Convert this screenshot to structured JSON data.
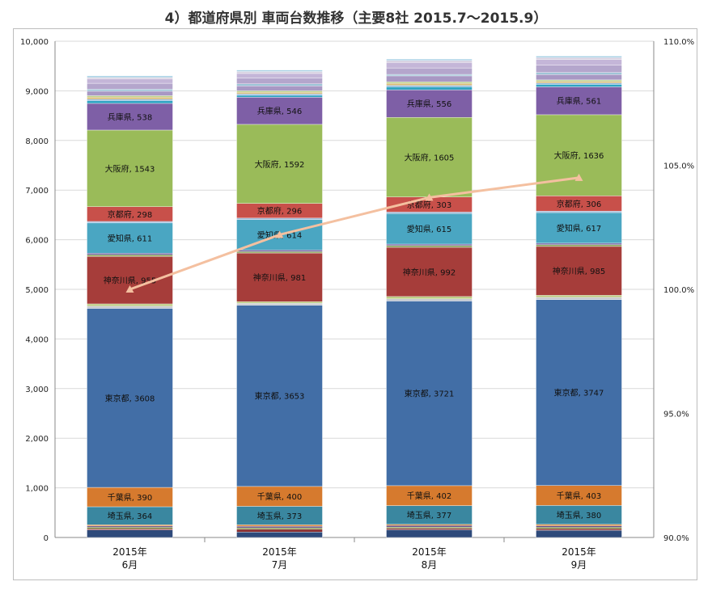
{
  "chart_data": {
    "type": "bar",
    "stacked": true,
    "title": "4）都道府県別 車両台数推移（主要8社 2015.7～2015.9）",
    "categories": [
      [
        "2015年",
        "6月"
      ],
      [
        "2015年",
        "7月"
      ],
      [
        "2015年",
        "8月"
      ],
      [
        "2015年",
        "9月"
      ]
    ],
    "ylim": [
      0,
      10000
    ],
    "yticks": [
      "0",
      "1,000",
      "2,000",
      "3,000",
      "4,000",
      "5,000",
      "6,000",
      "7,000",
      "8,000",
      "9,000",
      "10,000"
    ],
    "y2lim": [
      90,
      110
    ],
    "y2ticks": [
      "90.0%",
      "95.0%",
      "100.0%",
      "105.0%",
      "110.0%"
    ],
    "grid": true,
    "series": [
      {
        "name": "",
        "color": "#2e4a7a",
        "values": [
          150,
          110,
          155,
          145
        ]
      },
      {
        "name": "",
        "color": "#8c3030",
        "values": [
          25,
          55,
          30,
          30
        ]
      },
      {
        "name": "",
        "color": "#7a8a35",
        "values": [
          30,
          30,
          25,
          30
        ]
      },
      {
        "name": "",
        "color": "#5c4580",
        "values": [
          25,
          30,
          30,
          30
        ]
      },
      {
        "name": "",
        "color": "#d9873a",
        "values": [
          25,
          30,
          25,
          30
        ]
      },
      {
        "name": "埼玉県",
        "color": "#3a87a0",
        "values": [
          364,
          373,
          377,
          380
        ],
        "label": true
      },
      {
        "name": "千葉県",
        "color": "#d67a2e",
        "values": [
          390,
          400,
          402,
          403
        ],
        "label": true
      },
      {
        "name": "東京都",
        "color": "#426ea6",
        "values": [
          3608,
          3653,
          3721,
          3747
        ],
        "label": true
      },
      {
        "name": "",
        "color": "#c8cad0",
        "values": [
          45,
          40,
          45,
          45
        ]
      },
      {
        "name": "",
        "color": "#b8c87a",
        "values": [
          45,
          30,
          45,
          40
        ]
      },
      {
        "name": "神奈川県",
        "color": "#a63d3a",
        "values": [
          955,
          981,
          992,
          985
        ],
        "label": true
      },
      {
        "name": "",
        "color": "#8aa35a",
        "values": [
          35,
          30,
          35,
          35
        ]
      },
      {
        "name": "",
        "color": "#6c5aa0",
        "values": [
          30,
          30,
          30,
          30
        ]
      },
      {
        "name": "愛知県",
        "color": "#4aa6c2",
        "values": [
          611,
          614,
          615,
          617
        ],
        "label": true
      },
      {
        "name": "",
        "color": "#9ab6d8",
        "values": [
          30,
          30,
          30,
          30
        ]
      },
      {
        "name": "京都府",
        "color": "#c8504a",
        "values": [
          298,
          296,
          303,
          306
        ],
        "label": true
      },
      {
        "name": "大阪府",
        "color": "#9abb59",
        "values": [
          1543,
          1592,
          1605,
          1636
        ],
        "label": true
      },
      {
        "name": "兵庫県",
        "color": "#7e5fa6",
        "values": [
          538,
          546,
          556,
          561
        ],
        "label": true
      },
      {
        "name": "",
        "color": "#2ea3c2",
        "values": [
          55,
          40,
          60,
          50
        ]
      },
      {
        "name": "",
        "color": "#8fb4da",
        "values": [
          30,
          30,
          30,
          30
        ]
      },
      {
        "name": "",
        "color": "#d5b870",
        "values": [
          40,
          30,
          40,
          30
        ]
      },
      {
        "name": "",
        "color": "#bcd08a",
        "values": [
          30,
          30,
          30,
          30
        ]
      },
      {
        "name": "",
        "color": "#a898c4",
        "values": [
          90,
          100,
          120,
          110
        ]
      },
      {
        "name": "",
        "color": "#9cc4d6",
        "values": [
          40,
          40,
          30,
          40
        ]
      },
      {
        "name": "",
        "color": "#b4a6cc",
        "values": [
          120,
          120,
          130,
          150
        ]
      },
      {
        "name": "",
        "color": "#c4b6d8",
        "values": [
          90,
          90,
          110,
          110
        ]
      },
      {
        "name": "",
        "color": "#d6d0e0",
        "values": [
          30,
          40,
          40,
          40
        ]
      },
      {
        "name": "",
        "color": "#a6d0e4",
        "values": [
          30,
          30,
          30,
          30
        ]
      }
    ],
    "line": {
      "color": "#f4c0a0",
      "values": [
        100.0,
        102.2,
        103.7,
        104.5
      ]
    }
  }
}
